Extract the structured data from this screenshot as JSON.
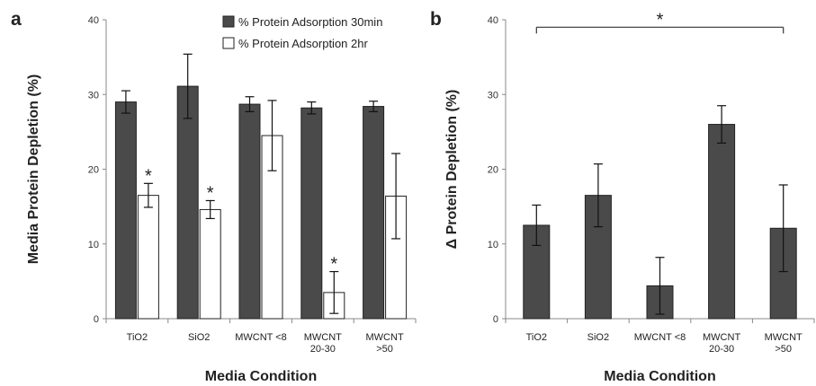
{
  "chart_data": [
    {
      "panel": "a",
      "type": "bar",
      "ylabel": "Media Protein Depletion (%)",
      "xlabel": "Media Condition",
      "ylim": [
        0,
        40
      ],
      "yticks": [
        0,
        10,
        20,
        30,
        40
      ],
      "categories": [
        [
          "TiO2"
        ],
        [
          "SiO2"
        ],
        [
          "MWCNT <8"
        ],
        [
          "MWCNT",
          "20-30"
        ],
        [
          "MWCNT",
          ">50"
        ]
      ],
      "legend_position": "top-right",
      "series": [
        {
          "name": "% Protein Adsorption 30min",
          "color": "#4a4a4a",
          "values": [
            29.0,
            31.1,
            28.7,
            28.2,
            28.4
          ],
          "errors": [
            1.5,
            4.3,
            1.0,
            0.8,
            0.7
          ]
        },
        {
          "name": "% Protein Adsorption 2hr",
          "color": "#ffffff",
          "values": [
            16.5,
            14.6,
            24.5,
            3.5,
            16.4
          ],
          "errors": [
            1.6,
            1.2,
            4.7,
            2.8,
            5.7
          ]
        }
      ],
      "significance": [
        {
          "series": 1,
          "category": 0,
          "label": "*"
        },
        {
          "series": 1,
          "category": 1,
          "label": "*"
        },
        {
          "series": 1,
          "category": 3,
          "label": "*"
        }
      ]
    },
    {
      "panel": "b",
      "type": "bar",
      "ylabel": "Δ Protein Depletion (%)",
      "xlabel": "Media Condition",
      "ylim": [
        0,
        40
      ],
      "yticks": [
        0,
        10,
        20,
        30,
        40
      ],
      "categories": [
        [
          "TiO2"
        ],
        [
          "SiO2"
        ],
        [
          "MWCNT <8"
        ],
        [
          "MWCNT",
          "20-30"
        ],
        [
          "MWCNT",
          ">50"
        ]
      ],
      "series": [
        {
          "color": "#4a4a4a",
          "values": [
            12.5,
            16.5,
            4.4,
            26.0,
            12.1
          ],
          "errors": [
            2.7,
            4.2,
            3.8,
            2.5,
            5.8
          ]
        }
      ],
      "bracket": {
        "from": 0,
        "to": 4,
        "value": 39.0,
        "label": "*"
      }
    }
  ]
}
